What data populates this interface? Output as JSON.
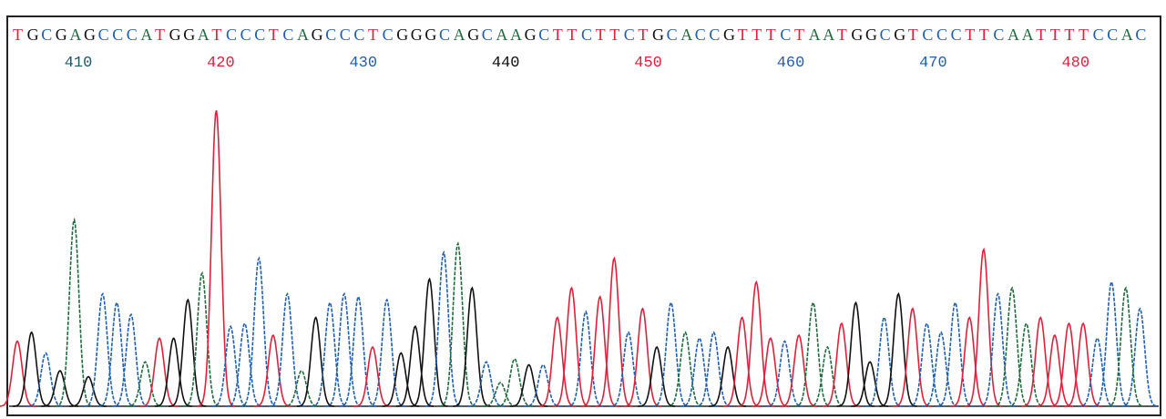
{
  "chart_data": {
    "type": "chromatogram",
    "sequence": [
      "T",
      "G",
      "C",
      "G",
      "A",
      "G",
      "C",
      "C",
      "C",
      "A",
      "T",
      "G",
      "G",
      "A",
      "T",
      "C",
      "C",
      "C",
      "T",
      "C",
      "A",
      "G",
      "C",
      "C",
      "C",
      "T",
      "C",
      "G",
      "G",
      "G",
      "C",
      "A",
      "G",
      "C",
      "A",
      "A",
      "G",
      "C",
      "T",
      "T",
      "C",
      "T",
      "T",
      "C",
      "T",
      "G",
      "C",
      "A",
      "C",
      "C",
      "G",
      "T",
      "T",
      "T",
      "C",
      "T",
      "A",
      "A",
      "T",
      "G",
      "G",
      "C",
      "G",
      "T",
      "C",
      "C",
      "C",
      "T",
      "T",
      "C",
      "A",
      "A",
      "T",
      "T",
      "T",
      "T",
      "C",
      "C",
      "A",
      "C"
    ],
    "peak_heights": [
      22,
      25,
      18,
      12,
      63,
      10,
      38,
      35,
      31,
      15,
      23,
      23,
      36,
      45,
      100,
      27,
      28,
      50,
      24,
      38,
      12,
      30,
      35,
      38,
      37,
      20,
      36,
      18,
      27,
      43,
      52,
      55,
      40,
      15,
      8,
      16,
      14,
      14,
      30,
      40,
      32,
      37,
      50,
      25,
      33,
      20,
      35,
      25,
      23,
      25,
      20,
      30,
      42,
      23,
      22,
      24,
      35,
      20,
      28,
      35,
      15,
      30,
      38,
      33,
      28,
      25,
      35,
      30,
      53,
      38,
      40,
      28,
      30,
      24,
      28,
      28,
      23,
      42,
      40,
      33
    ],
    "base_colors": {
      "A": "#1e6b3c",
      "C": "#1f5fb0",
      "G": "#111111",
      "T": "#e0203a"
    },
    "positions": [
      410,
      420,
      430,
      440,
      450,
      460,
      470,
      480
    ],
    "position_colors": [
      "#1f5a6b",
      "#e0203a",
      "#1f5fb0",
      "#111111",
      "#e0203a",
      "#1f5fb0",
      "#1f5fb0",
      "#e0203a"
    ]
  }
}
